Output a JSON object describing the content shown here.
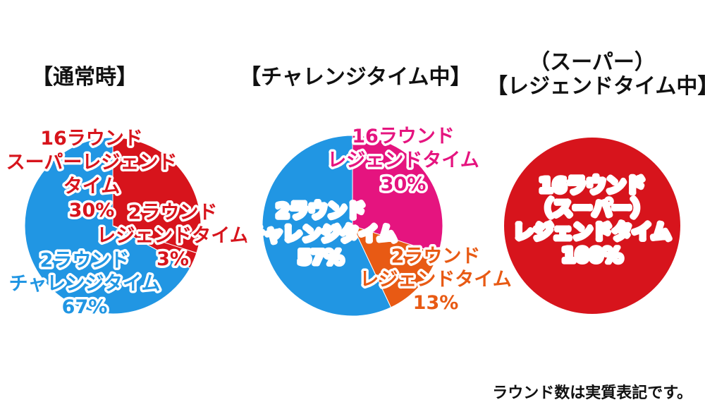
{
  "titles": {
    "normal": "【通常時】",
    "challenge": "【チャレンジタイム中】",
    "super_line1": "（スーパー）",
    "super_line2": "レジェンドタイム中",
    "super_open": "【",
    "super_close": "】"
  },
  "note": "ラウンド数は実質表記です。",
  "colors": {
    "red": "#d7141c",
    "blue": "#2196e3",
    "magenta": "#e5147f",
    "orange": "#e85a14",
    "white": "#ffffff"
  },
  "chart_data": [
    {
      "type": "pie",
      "title": "【通常時】",
      "slices": [
        {
          "label": [
            "16ラウンド",
            "スーパーレジェンド",
            "タイム",
            "30%"
          ],
          "value": 30,
          "color": "#d7141c"
        },
        {
          "label": [
            "2ラウンド",
            "レジェンドタイム",
            "3%"
          ],
          "value": 3,
          "color": "#d7141c"
        },
        {
          "label": [
            "2ラウンド",
            "チャレンジタイム",
            "67%"
          ],
          "value": 67,
          "color": "#2196e3"
        }
      ]
    },
    {
      "type": "pie",
      "title": "【チャレンジタイム中】",
      "slices": [
        {
          "label": [
            "16ラウンド",
            "レジェンドタイム",
            "30%"
          ],
          "value": 30,
          "color": "#e5147f"
        },
        {
          "label": [
            "2ラウンド",
            "レジェンドタイム",
            "13%"
          ],
          "value": 13,
          "color": "#e85a14"
        },
        {
          "label": [
            "2ラウンド",
            "チャレンジタイム",
            "57%"
          ],
          "value": 57,
          "color": "#2196e3"
        }
      ]
    },
    {
      "type": "pie",
      "title": "【（スーパー）レジェンドタイム中】",
      "slices": [
        {
          "label": [
            "16ラウンド",
            "（スーパー）",
            "レジェンドタイム",
            "100%"
          ],
          "value": 100,
          "color": "#d7141c"
        }
      ]
    }
  ]
}
